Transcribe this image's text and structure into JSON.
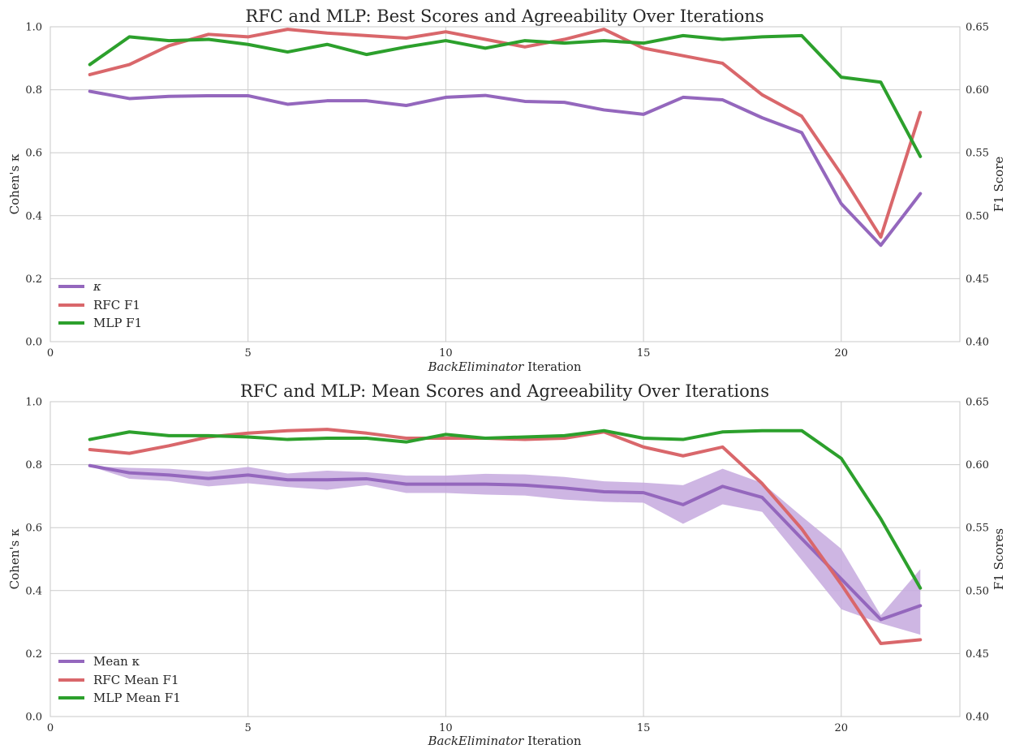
{
  "colors": {
    "kappa": "#9467bd",
    "rfc": "#d9676b",
    "mlp": "#2ca02c",
    "band": "#c5a9de",
    "grid": "#cccccc",
    "text": "#262626"
  },
  "chart_data": [
    {
      "type": "line",
      "title": "RFC and MLP: Best Scores and Agreeability Over Iterations",
      "xlabel_italic": "BackEliminator",
      "xlabel_rest": " Iteration",
      "ylabel": "Cohen's κ",
      "y2label": "F1 Score",
      "xlim": [
        0,
        23
      ],
      "ylim": [
        0,
        1.0
      ],
      "y2lim": [
        0.4,
        0.65
      ],
      "xticks": [
        "0",
        "5",
        "10",
        "15",
        "20"
      ],
      "yticks": [
        "0.0",
        "0.2",
        "0.4",
        "0.6",
        "0.8",
        "1.0"
      ],
      "y2ticks": [
        "0.40",
        "0.45",
        "0.50",
        "0.55",
        "0.60",
        "0.65"
      ],
      "grid": true,
      "legend": "lower-left",
      "x": [
        1,
        2,
        3,
        4,
        5,
        6,
        7,
        8,
        9,
        10,
        11,
        12,
        13,
        14,
        15,
        16,
        17,
        18,
        19,
        20,
        21,
        22
      ],
      "series": [
        {
          "name": "κ",
          "axis": "left",
          "color": "#9467bd",
          "values": [
            0.795,
            0.772,
            0.779,
            0.781,
            0.781,
            0.754,
            0.765,
            0.765,
            0.75,
            0.776,
            0.782,
            0.763,
            0.76,
            0.736,
            0.722,
            0.776,
            0.768,
            0.711,
            0.664,
            0.438,
            0.306,
            0.47
          ]
        },
        {
          "name": "RFC F1",
          "axis": "right",
          "color": "#d9676b",
          "values": [
            0.612,
            0.62,
            0.635,
            0.644,
            0.642,
            0.648,
            0.645,
            0.643,
            0.641,
            0.646,
            0.64,
            0.634,
            0.64,
            0.648,
            0.633,
            0.627,
            0.621,
            0.596,
            0.579,
            0.533,
            0.483,
            0.582
          ]
        },
        {
          "name": "MLP F1",
          "axis": "right",
          "color": "#2ca02c",
          "values": [
            0.62,
            0.642,
            0.639,
            0.64,
            0.636,
            0.63,
            0.636,
            0.628,
            0.634,
            0.639,
            0.633,
            0.639,
            0.637,
            0.639,
            0.637,
            0.643,
            0.64,
            0.642,
            0.643,
            0.61,
            0.606,
            0.547
          ]
        }
      ]
    },
    {
      "type": "line",
      "title": "RFC and MLP: Mean Scores and Agreeability Over Iterations",
      "xlabel_italic": "BackEliminator",
      "xlabel_rest": " Iteration",
      "ylabel": "Cohen's κ",
      "y2label": "F1 Scores",
      "xlim": [
        0,
        23
      ],
      "ylim": [
        0,
        1.0
      ],
      "y2lim": [
        0.4,
        0.65
      ],
      "xticks": [
        "0",
        "5",
        "10",
        "15",
        "20"
      ],
      "yticks": [
        "0.0",
        "0.2",
        "0.4",
        "0.6",
        "0.8",
        "1.0"
      ],
      "y2ticks": [
        "0.40",
        "0.45",
        "0.50",
        "0.55",
        "0.60",
        "0.65"
      ],
      "grid": true,
      "legend": "lower-left",
      "x": [
        1,
        2,
        3,
        4,
        5,
        6,
        7,
        8,
        9,
        10,
        11,
        12,
        13,
        14,
        15,
        16,
        17,
        18,
        19,
        20,
        21,
        22
      ],
      "band": {
        "axis": "left",
        "color": "#c5a9de",
        "upper": [
          0.795,
          0.79,
          0.787,
          0.778,
          0.793,
          0.772,
          0.781,
          0.776,
          0.765,
          0.765,
          0.771,
          0.769,
          0.761,
          0.747,
          0.743,
          0.735,
          0.787,
          0.742,
          0.636,
          0.533,
          0.322,
          0.468
        ],
        "lower": [
          0.795,
          0.755,
          0.748,
          0.731,
          0.741,
          0.729,
          0.72,
          0.735,
          0.71,
          0.71,
          0.705,
          0.702,
          0.689,
          0.682,
          0.679,
          0.612,
          0.674,
          0.65,
          0.497,
          0.341,
          0.296,
          0.26
        ]
      },
      "series": [
        {
          "name": "Mean κ",
          "axis": "left",
          "color": "#9467bd",
          "values": [
            0.797,
            0.774,
            0.767,
            0.756,
            0.767,
            0.752,
            0.752,
            0.755,
            0.738,
            0.738,
            0.738,
            0.735,
            0.726,
            0.714,
            0.711,
            0.673,
            0.731,
            0.696,
            0.565,
            0.437,
            0.308,
            0.352
          ]
        },
        {
          "name": "RFC Mean F1",
          "axis": "right",
          "color": "#d9676b",
          "values": [
            0.612,
            0.609,
            0.615,
            0.622,
            0.625,
            0.627,
            0.628,
            0.625,
            0.621,
            0.621,
            0.621,
            0.62,
            0.621,
            0.626,
            0.614,
            0.607,
            0.614,
            0.585,
            0.549,
            0.505,
            0.458,
            0.461
          ]
        },
        {
          "name": "MLP Mean F1",
          "axis": "right",
          "color": "#2ca02c",
          "values": [
            0.62,
            0.626,
            0.623,
            0.623,
            0.622,
            0.62,
            0.621,
            0.621,
            0.618,
            0.624,
            0.621,
            0.622,
            0.623,
            0.627,
            0.621,
            0.62,
            0.626,
            0.627,
            0.627,
            0.605,
            0.557,
            0.502
          ]
        }
      ]
    }
  ]
}
